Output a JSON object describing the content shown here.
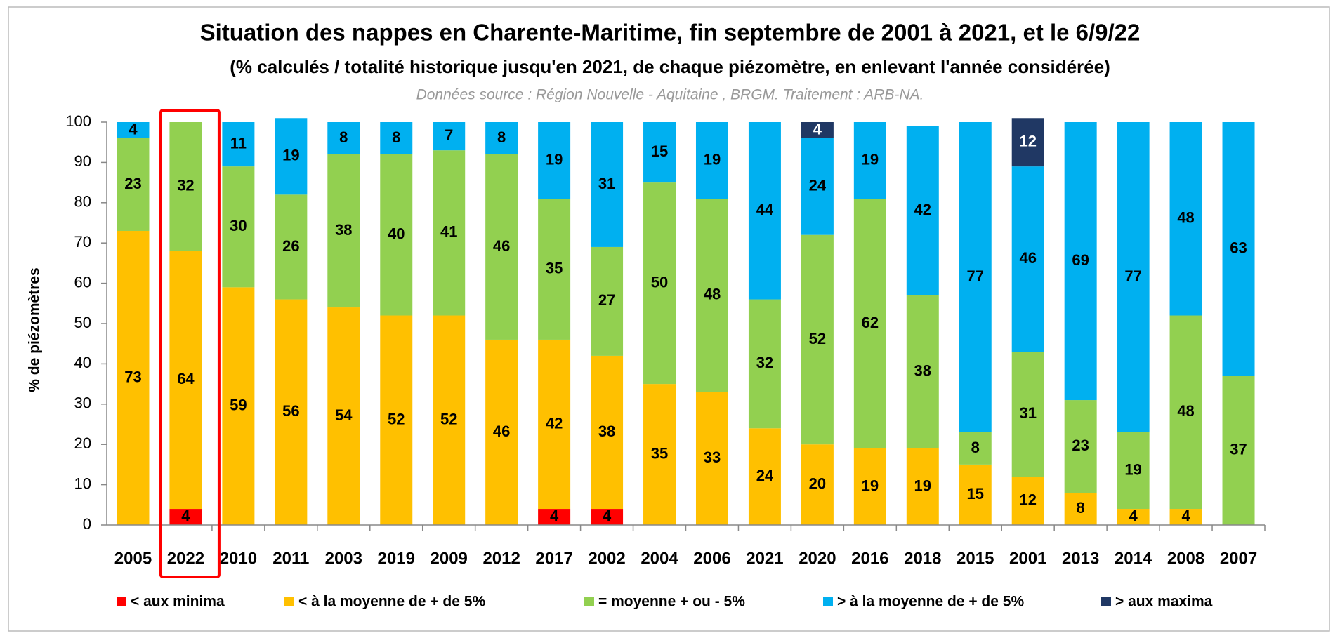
{
  "chart_data": {
    "type": "stacked_bar",
    "title": "Situation des nappes en Charente-Maritime, fin septembre de 2001 à 2021, et le 6/9/22",
    "subtitle": "(% calculés / totalité historique jusqu'en 2021, de chaque piézomètre,  en enlevant l'année considérée)",
    "source": "Données source : Région Nouvelle  - Aquitaine , BRGM.  Traitement : ARB-NA.",
    "y_label": "% de piézomètres",
    "categories": [
      "2005",
      "2022",
      "2010",
      "2011",
      "2003",
      "2019",
      "2009",
      "2012",
      "2017",
      "2002",
      "2004",
      "2006",
      "2021",
      "2020",
      "2016",
      "2018",
      "2015",
      "2001",
      "2013",
      "2014",
      "2008",
      "2007"
    ],
    "series": [
      {
        "name": "< aux minima",
        "color": "#ff0000",
        "values": [
          null,
          4,
          null,
          null,
          null,
          null,
          null,
          null,
          4,
          4,
          null,
          null,
          null,
          null,
          null,
          null,
          null,
          null,
          null,
          null,
          null,
          null
        ]
      },
      {
        "name": "< à la moyenne de + de 5%",
        "color": "#ffc000",
        "values": [
          73,
          64,
          59,
          56,
          54,
          52,
          52,
          46,
          42,
          38,
          35,
          33,
          24,
          20,
          19,
          19,
          15,
          12,
          8,
          4,
          4,
          null
        ]
      },
      {
        "name": "= moyenne + ou - 5%",
        "color": "#92d050",
        "values": [
          23,
          32,
          30,
          26,
          38,
          40,
          41,
          46,
          35,
          27,
          50,
          48,
          32,
          52,
          62,
          38,
          8,
          31,
          23,
          19,
          48,
          37
        ]
      },
      {
        "name": "> à la moyenne de + de 5%",
        "color": "#00b0f0",
        "values": [
          4,
          null,
          11,
          19,
          8,
          8,
          7,
          8,
          19,
          31,
          15,
          19,
          44,
          24,
          19,
          42,
          77,
          46,
          69,
          77,
          48,
          63
        ]
      },
      {
        "name": "> aux maxima",
        "color": "#203864",
        "values": [
          null,
          null,
          null,
          null,
          null,
          null,
          null,
          null,
          null,
          null,
          null,
          null,
          null,
          4,
          null,
          null,
          null,
          12,
          null,
          null,
          null,
          null
        ]
      }
    ],
    "ylim": [
      0,
      100
    ],
    "yticks": [
      0,
      10,
      20,
      30,
      40,
      50,
      60,
      70,
      80,
      90,
      100
    ],
    "grid": false,
    "legend": "bottom",
    "highlight": {
      "category_index": 1,
      "color": "#ff0000"
    }
  }
}
